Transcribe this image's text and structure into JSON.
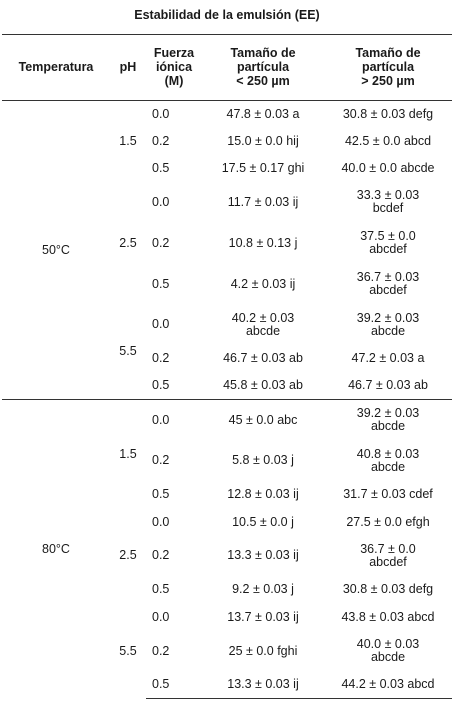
{
  "caption": "Estabilidad de la emulsión (EE)",
  "headers": {
    "temperature": "Temperatura",
    "ph": "pH",
    "ionic_strength": [
      "Fuerza",
      "iónica",
      "(M)"
    ],
    "size_lt": [
      "Tamaño de",
      "partícula",
      "< 250 µm"
    ],
    "size_gt": [
      "Tamaño de",
      "partícula",
      "> 250 µm"
    ]
  },
  "rows": [
    {
      "fi": "0.0",
      "lt": "47.8 ± 0.03 a",
      "gt": "30.8 ± 0.03 defg"
    },
    {
      "fi": "0.2",
      "lt": "15.0 ± 0.0 hij",
      "gt": "42.5 ± 0.0 abcd"
    },
    {
      "fi": "0.5",
      "lt": "17.5 ± 0.17 ghi",
      "gt": "40.0 ± 0.0 abcde"
    },
    {
      "fi": "0.0",
      "lt": "11.7 ± 0.03 ij",
      "gt": [
        "33.3 ± 0.03",
        "bcdef"
      ]
    },
    {
      "fi": "0.2",
      "lt": "10.8 ± 0.13 j",
      "gt": [
        "37.5 ± 0.0",
        "abcdef"
      ]
    },
    {
      "fi": "0.5",
      "lt": "4.2 ± 0.03 ij",
      "gt": [
        "36.7 ± 0.03",
        "abcdef"
      ]
    },
    {
      "fi": "0.0",
      "lt": [
        "40.2 ± 0.03",
        "abcde"
      ],
      "gt": [
        "39.2 ± 0.03",
        "abcde"
      ]
    },
    {
      "fi": "0.2",
      "lt": "46.7 ± 0.03 ab",
      "gt": "47.2 ± 0.03 a"
    },
    {
      "fi": "0.5",
      "lt": "45.8 ± 0.03 ab",
      "gt": "46.7 ± 0.03 ab"
    },
    {
      "fi": "0.0",
      "lt": "45 ± 0.0 abc",
      "gt": [
        "39.2 ± 0.03",
        "abcde"
      ]
    },
    {
      "fi": "0.2",
      "lt": "5.8 ± 0.03 j",
      "gt": [
        "40.8 ± 0.03",
        "abcde"
      ]
    },
    {
      "fi": "0.5",
      "lt": "12.8 ± 0.03 ij",
      "gt": "31.7 ± 0.03 cdef"
    },
    {
      "fi": "0.0",
      "lt": "10.5 ± 0.0 j",
      "gt": "27.5 ± 0.0 efgh"
    },
    {
      "fi": "0.2",
      "lt": "13.3 ± 0.03 ij",
      "gt": [
        "36.7 ± 0.0",
        "abcdef"
      ]
    },
    {
      "fi": "0.5",
      "lt": "9.2 ± 0.03 j",
      "gt": "30.8 ± 0.03 defg"
    },
    {
      "fi": "0.0",
      "lt": "13.7 ± 0.03 ij",
      "gt": "43.8 ± 0.03 abcd"
    },
    {
      "fi": "0.2",
      "lt": "25 ± 0.0 fghi",
      "gt": [
        "40.0 ± 0.03",
        "abcde"
      ]
    },
    {
      "fi": "0.5",
      "lt": "13.3 ± 0.03 ij",
      "gt": "44.2 ± 0.03 abcd"
    }
  ],
  "groups": {
    "temperatures": [
      "50°C",
      "80°C"
    ],
    "ph_values": [
      "1.5",
      "2.5",
      "5.5",
      "1.5",
      "2.5",
      "5.5"
    ]
  }
}
